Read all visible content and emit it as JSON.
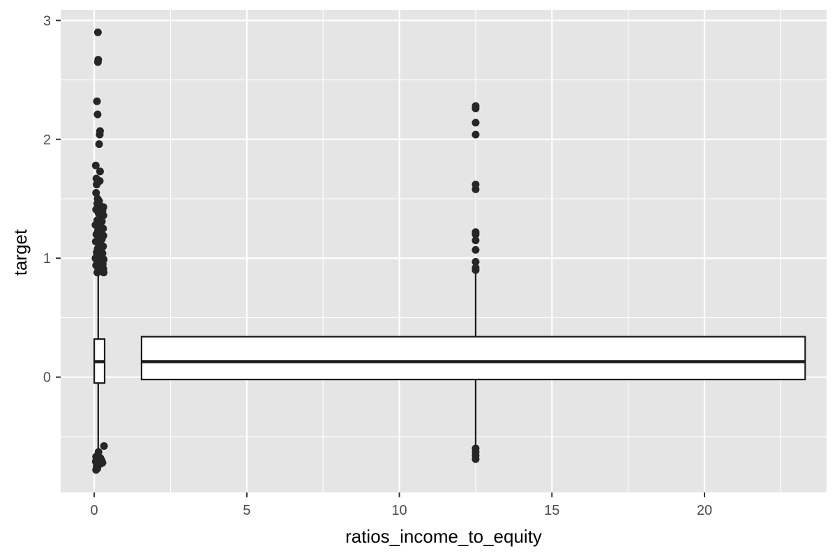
{
  "chart_data": {
    "type": "boxplot",
    "title": "",
    "xlabel": "ratios_income_to_equity",
    "ylabel": "target",
    "xlim": [
      -1.1,
      24.0
    ],
    "ylim": [
      -0.97,
      3.09
    ],
    "x_ticks": [
      0,
      5,
      10,
      15,
      20
    ],
    "y_ticks": [
      0,
      1,
      2,
      3
    ],
    "x_minor_ticks": [
      2.5,
      7.5,
      12.5,
      17.5,
      22.5
    ],
    "y_minor_ticks": [
      -0.5,
      0.5,
      1.5,
      2.5
    ],
    "grid": true,
    "colors": {
      "panel_background": "#e5e5e5",
      "grid_line": "#ffffff",
      "box_fill": "#ffffff",
      "box_outline": "#1a1a1a",
      "outlier": "#262626",
      "tick_text": "#4d4d4d",
      "axis_title": "#000000"
    },
    "boxes": [
      {
        "group": "narrow box near x=0.1",
        "xmin": 0.0,
        "xmax": 0.34,
        "q1": -0.05,
        "median": 0.13,
        "q3": 0.32,
        "whisker_x": 0.13,
        "whisker_low": -0.62,
        "whisker_high": 0.87,
        "outliers": [
          {
            "x": 0.12,
            "y": 2.9
          },
          {
            "x": 0.13,
            "y": 2.67
          },
          {
            "x": 0.12,
            "y": 2.65
          },
          {
            "x": 0.09,
            "y": 2.32
          },
          {
            "x": 0.11,
            "y": 2.21
          },
          {
            "x": 0.19,
            "y": 2.07
          },
          {
            "x": 0.18,
            "y": 2.04
          },
          {
            "x": 0.16,
            "y": 1.96
          },
          {
            "x": 0.05,
            "y": 1.78
          },
          {
            "x": 0.19,
            "y": 1.73
          },
          {
            "x": 0.07,
            "y": 1.67
          },
          {
            "x": 0.18,
            "y": 1.65
          },
          {
            "x": 0.08,
            "y": 1.62
          },
          {
            "x": 0.06,
            "y": 1.55
          },
          {
            "x": 0.11,
            "y": 1.5
          },
          {
            "x": 0.16,
            "y": 1.48
          },
          {
            "x": 0.1,
            "y": 1.46
          },
          {
            "x": 0.2,
            "y": 1.44
          },
          {
            "x": 0.3,
            "y": 1.43
          },
          {
            "x": 0.06,
            "y": 1.41
          },
          {
            "x": 0.27,
            "y": 1.4
          },
          {
            "x": 0.14,
            "y": 1.38
          },
          {
            "x": 0.3,
            "y": 1.36
          },
          {
            "x": 0.2,
            "y": 1.34
          },
          {
            "x": 0.1,
            "y": 1.32
          },
          {
            "x": 0.25,
            "y": 1.31
          },
          {
            "x": 0.04,
            "y": 1.28
          },
          {
            "x": 0.17,
            "y": 1.27
          },
          {
            "x": 0.29,
            "y": 1.25
          },
          {
            "x": 0.12,
            "y": 1.23
          },
          {
            "x": 0.22,
            "y": 1.22
          },
          {
            "x": 0.07,
            "y": 1.2
          },
          {
            "x": 0.3,
            "y": 1.19
          },
          {
            "x": 0.15,
            "y": 1.17
          },
          {
            "x": 0.25,
            "y": 1.16
          },
          {
            "x": 0.05,
            "y": 1.14
          },
          {
            "x": 0.18,
            "y": 1.12
          },
          {
            "x": 0.29,
            "y": 1.1
          },
          {
            "x": 0.11,
            "y": 1.08
          },
          {
            "x": 0.23,
            "y": 1.07
          },
          {
            "x": 0.08,
            "y": 1.05
          },
          {
            "x": 0.27,
            "y": 1.04
          },
          {
            "x": 0.14,
            "y": 1.02
          },
          {
            "x": 0.2,
            "y": 1.01
          },
          {
            "x": 0.04,
            "y": 1.0
          },
          {
            "x": 0.31,
            "y": 0.99
          },
          {
            "x": 0.09,
            "y": 0.98
          },
          {
            "x": 0.24,
            "y": 0.97
          },
          {
            "x": 0.16,
            "y": 0.96
          },
          {
            "x": 0.28,
            "y": 0.95
          },
          {
            "x": 0.06,
            "y": 0.94
          },
          {
            "x": 0.21,
            "y": 0.93
          },
          {
            "x": 0.12,
            "y": 0.92
          },
          {
            "x": 0.3,
            "y": 0.91
          },
          {
            "x": 0.18,
            "y": 0.9
          },
          {
            "x": 0.25,
            "y": 0.89
          },
          {
            "x": 0.1,
            "y": 0.88
          },
          {
            "x": 0.31,
            "y": 0.88
          },
          {
            "x": 0.14,
            "y": -0.63
          },
          {
            "x": 0.32,
            "y": -0.58
          },
          {
            "x": 0.06,
            "y": -0.67
          },
          {
            "x": 0.12,
            "y": -0.66
          },
          {
            "x": 0.2,
            "y": -0.68
          },
          {
            "x": 0.24,
            "y": -0.7
          },
          {
            "x": 0.05,
            "y": -0.71
          },
          {
            "x": 0.12,
            "y": -0.72
          },
          {
            "x": 0.2,
            "y": -0.73
          },
          {
            "x": 0.27,
            "y": -0.72
          },
          {
            "x": 0.08,
            "y": -0.75
          },
          {
            "x": 0.13,
            "y": -0.74
          },
          {
            "x": 0.06,
            "y": -0.78
          },
          {
            "x": 0.1,
            "y": -0.77
          }
        ]
      },
      {
        "group": "wide box centered at x=12.5",
        "xmin": 1.55,
        "xmax": 23.3,
        "q1": -0.02,
        "median": 0.13,
        "q3": 0.34,
        "whisker_x": 12.5,
        "whisker_low": -0.58,
        "whisker_high": 0.9,
        "outliers": [
          {
            "x": 12.5,
            "y": 2.28
          },
          {
            "x": 12.5,
            "y": 2.26
          },
          {
            "x": 12.5,
            "y": 2.14
          },
          {
            "x": 12.5,
            "y": 2.04
          },
          {
            "x": 12.5,
            "y": 1.62
          },
          {
            "x": 12.5,
            "y": 1.58
          },
          {
            "x": 12.5,
            "y": 1.22
          },
          {
            "x": 12.5,
            "y": 1.2
          },
          {
            "x": 12.5,
            "y": 1.15
          },
          {
            "x": 12.5,
            "y": 1.07
          },
          {
            "x": 12.5,
            "y": 0.97
          },
          {
            "x": 12.5,
            "y": 0.92
          },
          {
            "x": 12.5,
            "y": 0.9
          },
          {
            "x": 12.5,
            "y": -0.6
          },
          {
            "x": 12.5,
            "y": -0.63
          },
          {
            "x": 12.5,
            "y": -0.66
          },
          {
            "x": 12.5,
            "y": -0.69
          }
        ]
      }
    ]
  }
}
